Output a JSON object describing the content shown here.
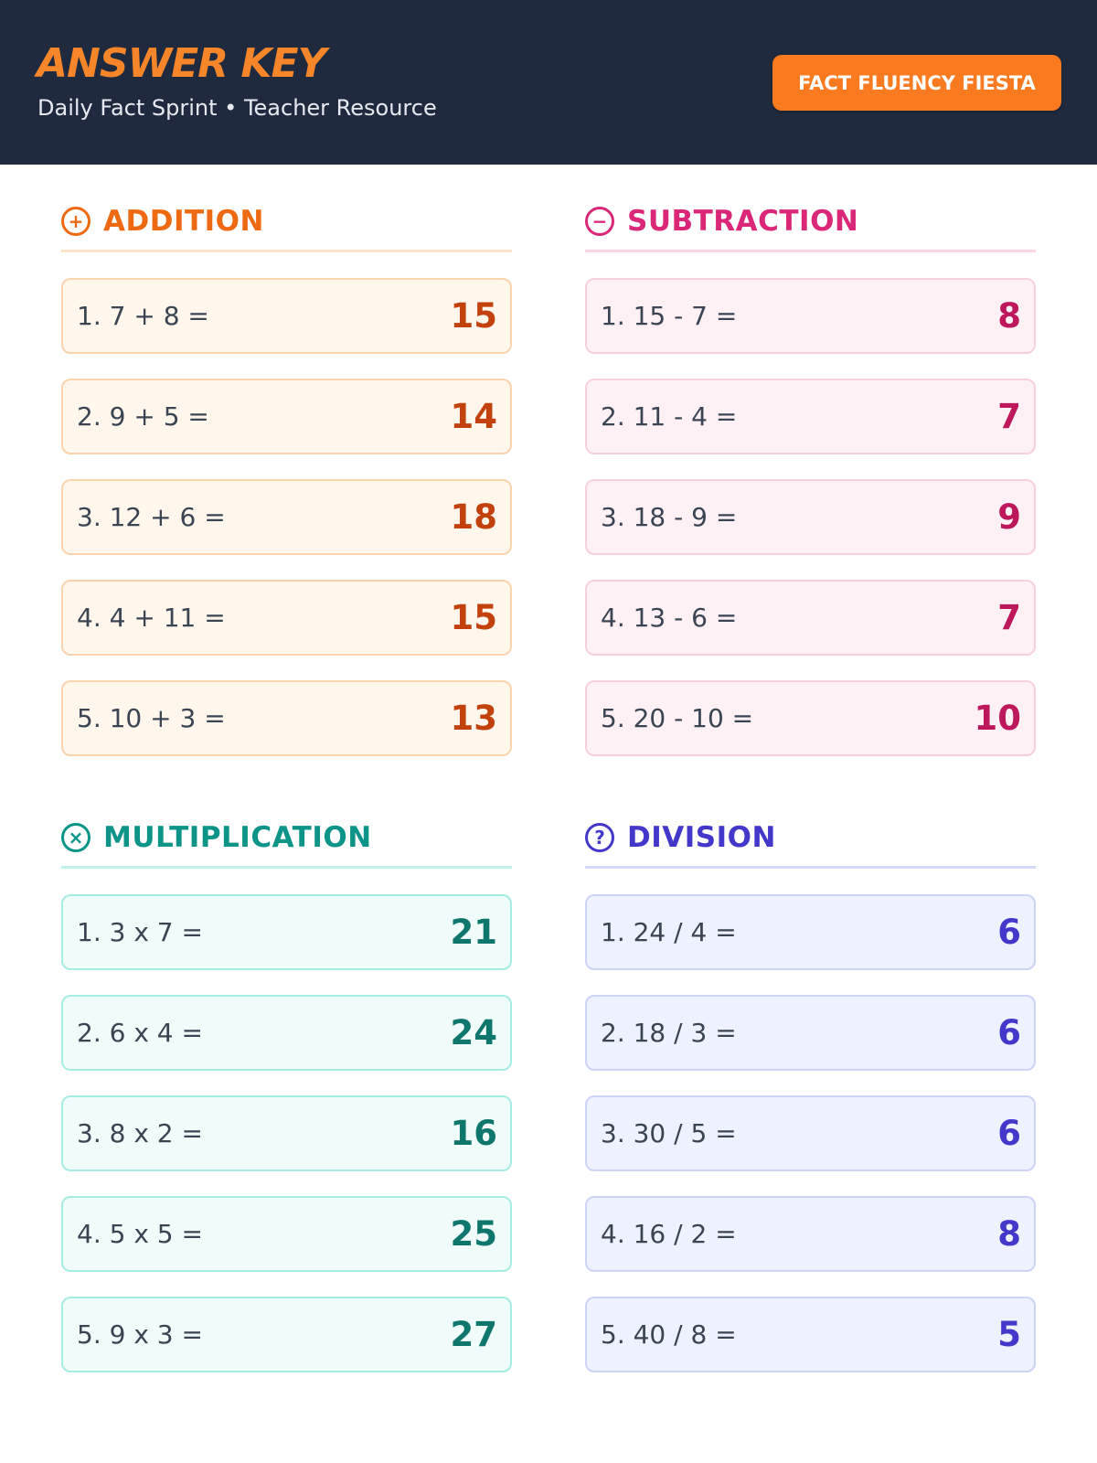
{
  "header": {
    "title": "ANSWER KEY",
    "subtitle": "Daily Fact Sprint • Teacher Resource",
    "badge": "FACT FLUENCY FIESTA"
  },
  "colors": {
    "header_bg": "#1f2a3e",
    "title": "#f7862a",
    "badge": "#f97a1f",
    "addition": "#ee6a12",
    "subtraction": "#db2777",
    "multiplication": "#0d9488",
    "division": "#4338ca"
  },
  "sections": {
    "addition": {
      "title": "ADDITION",
      "icon": "plus-circle-icon",
      "glyph": "+",
      "items": [
        {
          "q": "1. 7 + 8 =",
          "a": "15"
        },
        {
          "q": "2. 9 + 5 =",
          "a": "14"
        },
        {
          "q": "3. 12 + 6 =",
          "a": "18"
        },
        {
          "q": "4. 4 + 11 =",
          "a": "15"
        },
        {
          "q": "5. 10 + 3 =",
          "a": "13"
        }
      ]
    },
    "subtraction": {
      "title": "SUBTRACTION",
      "icon": "minus-circle-icon",
      "glyph": "−",
      "items": [
        {
          "q": "1. 15 - 7 =",
          "a": "8"
        },
        {
          "q": "2. 11 - 4 =",
          "a": "7"
        },
        {
          "q": "3. 18 - 9 =",
          "a": "9"
        },
        {
          "q": "4. 13 - 6 =",
          "a": "7"
        },
        {
          "q": "5. 20 - 10 =",
          "a": "10"
        }
      ]
    },
    "multiplication": {
      "title": "MULTIPLICATION",
      "icon": "times-circle-icon",
      "glyph": "×",
      "items": [
        {
          "q": "1. 3 x 7 =",
          "a": "21"
        },
        {
          "q": "2. 6 x 4 =",
          "a": "24"
        },
        {
          "q": "3. 8 x 2 =",
          "a": "16"
        },
        {
          "q": "4. 5 x 5 =",
          "a": "25"
        },
        {
          "q": "5. 9 x 3 =",
          "a": "27"
        }
      ]
    },
    "division": {
      "title": "DIVISION",
      "icon": "question-circle-icon",
      "glyph": "?",
      "items": [
        {
          "q": "1. 24 / 4 =",
          "a": "6"
        },
        {
          "q": "2. 18 / 3 =",
          "a": "6"
        },
        {
          "q": "3. 30 / 5 =",
          "a": "6"
        },
        {
          "q": "4. 16 / 2 =",
          "a": "8"
        },
        {
          "q": "5. 40 / 8 =",
          "a": "5"
        }
      ]
    }
  }
}
